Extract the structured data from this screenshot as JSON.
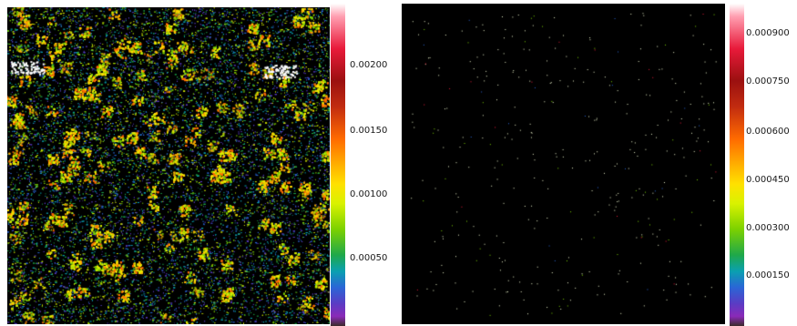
{
  "left_plot": {
    "colorbar_ticks": [
      "0.00200",
      "0.00150",
      "0.00100",
      "0.00050"
    ]
  },
  "right_plot": {
    "colorbar_ticks": [
      "0.000900",
      "0.000750",
      "0.000600",
      "0.000450",
      "0.000300",
      "0.000150"
    ]
  },
  "colors": {
    "background": "#000000",
    "page": "#ffffff"
  }
}
